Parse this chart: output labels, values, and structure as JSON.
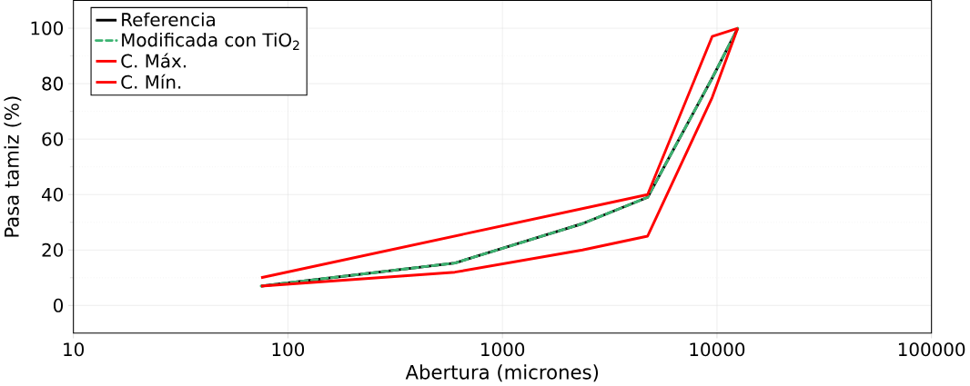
{
  "chart_data": {
    "type": "line",
    "xlabel": "Abertura (micrones)",
    "ylabel": "Pasa tamiz (%)",
    "log": "x",
    "xlim": [
      10,
      100000
    ],
    "xticks": [
      10,
      100,
      1000,
      10000,
      100000
    ],
    "ylim": [
      -10,
      110
    ],
    "yticks": [
      0,
      20,
      40,
      60,
      80,
      100
    ],
    "grid": true,
    "legend": "top left",
    "line_style": "solid",
    "marker": "none",
    "series": [
      {
        "name": "Referencia",
        "color": "#000000",
        "x": [
          75,
          600,
          2360,
          4750,
          9500,
          12500
        ],
        "values": [
          7,
          15.3,
          29.5,
          39,
          82,
          100
        ]
      },
      {
        "name": "Modificada con TiO$_{2}$",
        "color": "#3cb371",
        "line_style": "dashed",
        "x": [
          75,
          600,
          2360,
          4750,
          9500,
          12500
        ],
        "values": [
          7,
          15.3,
          29.5,
          39,
          82,
          100
        ]
      },
      {
        "name": "C. Máx.",
        "color": "#ff0000",
        "x": [
          75,
          4750,
          9500,
          12500
        ],
        "values": [
          10,
          40,
          97,
          100
        ]
      },
      {
        "name": "C. Mín.",
        "color": "#ff0000",
        "x": [
          75,
          600,
          2360,
          4750,
          9500,
          12500
        ],
        "values": [
          7,
          12,
          20,
          25,
          75,
          100
        ]
      }
    ]
  }
}
